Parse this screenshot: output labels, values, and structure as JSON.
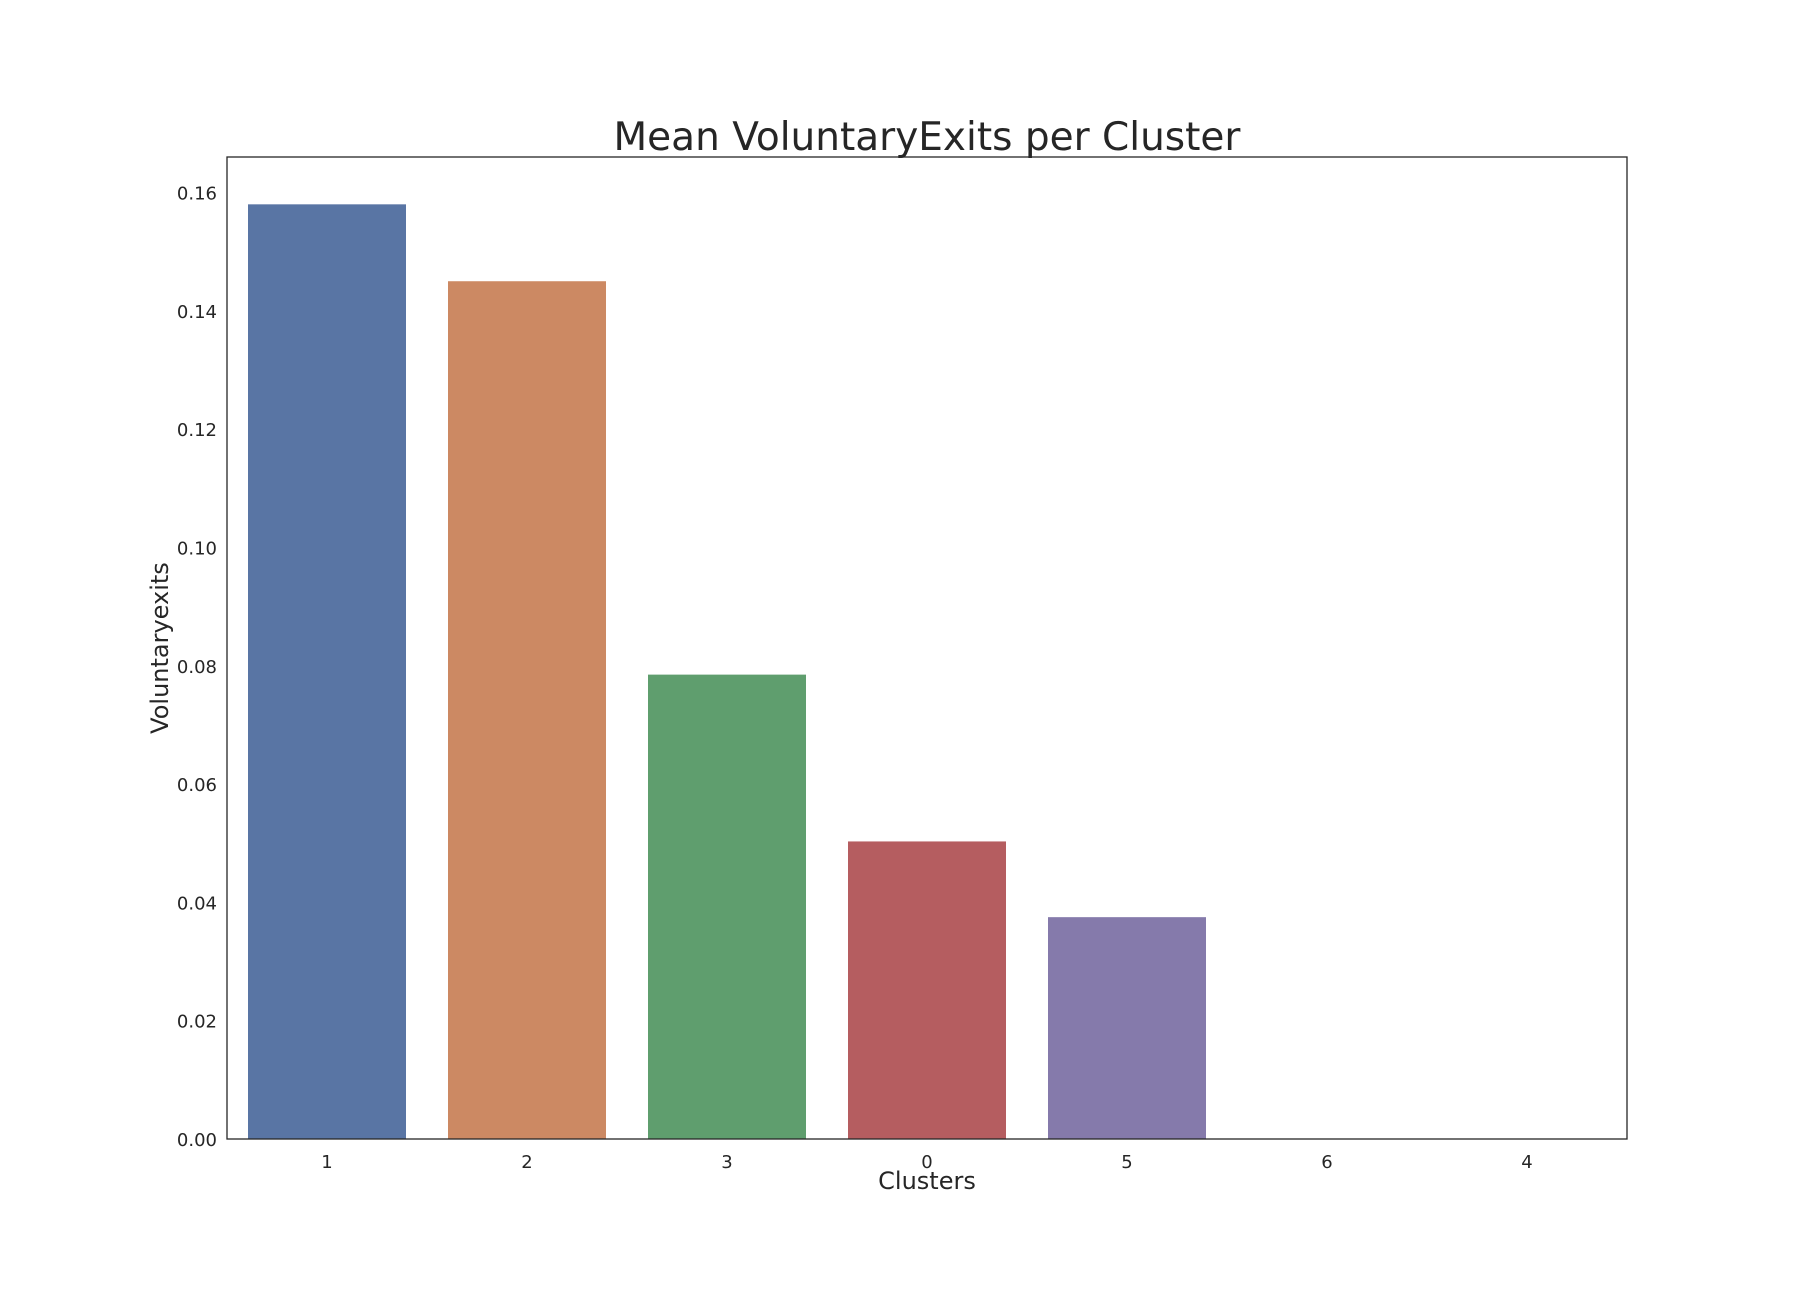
{
  "chart_data": {
    "type": "bar",
    "title": "Mean VoluntaryExits per Cluster",
    "xlabel": "Clusters",
    "ylabel": "Voluntaryexits",
    "categories": [
      "1",
      "2",
      "3",
      "0",
      "5",
      "6",
      "4"
    ],
    "values": [
      0.158,
      0.145,
      0.0785,
      0.0503,
      0.0375,
      0.0,
      0.0
    ],
    "colors": [
      "#5975a4",
      "#cc8963",
      "#5f9e6e",
      "#b55d60",
      "#857aab",
      "#8d7866",
      "#d095bf"
    ],
    "ylim": [
      0,
      0.166
    ],
    "yticks": [
      "0.00",
      "0.02",
      "0.04",
      "0.06",
      "0.08",
      "0.10",
      "0.12",
      "0.14",
      "0.16"
    ],
    "grid": false,
    "legend": "none"
  }
}
